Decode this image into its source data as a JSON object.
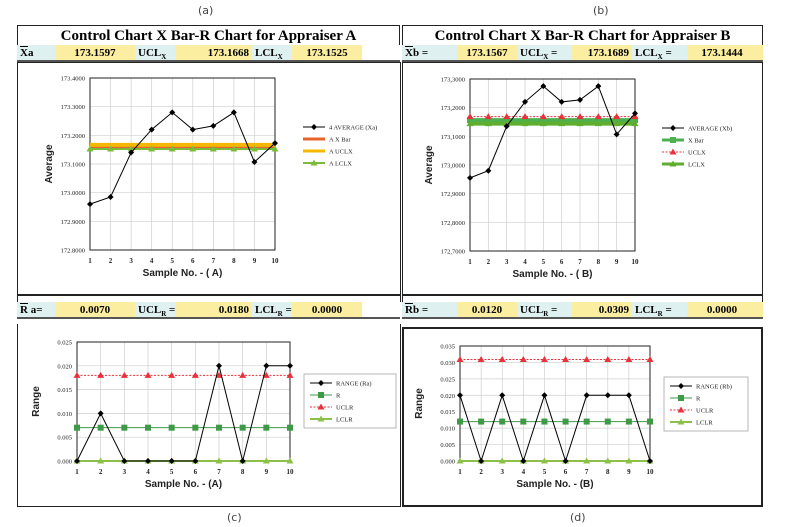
{
  "captions": {
    "a": "(a)",
    "b": "(b)",
    "c": "(c)",
    "d": "(d)"
  },
  "panels": {
    "a": {
      "title": "Control Chart X Bar-R Chart for Appraiser A",
      "stats": [
        {
          "bar": "X",
          "label": "a",
          "sub": ""
        },
        {
          "value": "173.1597"
        },
        {
          "bar": "",
          "label": "UCL",
          "sub": "X"
        },
        {
          "value": "173.1668"
        },
        {
          "bar": "",
          "label": "LCL",
          "sub": "X"
        },
        {
          "value": "173.1525"
        }
      ]
    },
    "b": {
      "title": "Control Chart X Bar-R Chart for Appraiser B",
      "stats": [
        {
          "bar": "X",
          "label": "b =",
          "sub": ""
        },
        {
          "value": "173.1567"
        },
        {
          "bar": "",
          "label": "UCL",
          "sub": "X",
          "tail": " ="
        },
        {
          "value": "173.1689"
        },
        {
          "bar": "",
          "label": "LCL",
          "sub": "X",
          "tail": " ="
        },
        {
          "value": "173.1444"
        }
      ]
    },
    "c": {
      "stats": [
        {
          "bar": "R",
          "label": " a=",
          "sub": ""
        },
        {
          "value": "0.0070"
        },
        {
          "bar": "",
          "label": "UCL",
          "sub": "R",
          "tail": " ="
        },
        {
          "value": "0.0180"
        },
        {
          "bar": "",
          "label": "LCL",
          "sub": "R",
          "tail": " ="
        },
        {
          "value": "0.0000"
        }
      ]
    },
    "d": {
      "stats": [
        {
          "bar": "R",
          "label": "b =",
          "sub": ""
        },
        {
          "value": "0.0120"
        },
        {
          "bar": "",
          "label": "UCL",
          "sub": "R",
          "tail": " ="
        },
        {
          "value": "0.0309"
        },
        {
          "bar": "",
          "label": "LCL",
          "sub": "R",
          "tail": " ="
        },
        {
          "value": "0.0000"
        }
      ]
    }
  },
  "chart_data": [
    {
      "type": "line",
      "xlabel": "Sample No. - ( A)",
      "ylabel": "Average",
      "ylim": [
        172.8,
        173.4
      ],
      "grid": true,
      "legend": "right",
      "categories": [
        "1",
        "2",
        "3",
        "4",
        "5",
        "6",
        "7",
        "8",
        "9",
        "10"
      ],
      "yticks": [
        "172.8000",
        "172.9000",
        "173.0000",
        "173.1000",
        "173.2000",
        "173.3000",
        "173.4000"
      ],
      "series": [
        {
          "name": "4  AVERAGE (Xa)",
          "values": [
            172.96,
            172.985,
            173.14,
            173.22,
            173.28,
            173.22,
            173.233,
            173.28,
            173.107,
            173.173
          ],
          "color": "#000000",
          "marker": "diamond",
          "width": 1
        },
        {
          "name": "A X Bar",
          "values": [
            173.1597,
            173.1597,
            173.1597,
            173.1597,
            173.1597,
            173.1597,
            173.1597,
            173.1597,
            173.1597,
            173.1597
          ],
          "color": "#e8642c",
          "marker": "none",
          "width": 4
        },
        {
          "name": "A UCLX",
          "values": [
            173.1668,
            173.1668,
            173.1668,
            173.1668,
            173.1668,
            173.1668,
            173.1668,
            173.1668,
            173.1668,
            173.1668
          ],
          "color": "#f5b800",
          "marker": "none",
          "width": 4
        },
        {
          "name": "A LCLX",
          "values": [
            173.1525,
            173.1525,
            173.1525,
            173.1525,
            173.1525,
            173.1525,
            173.1525,
            173.1525,
            173.1525,
            173.1525
          ],
          "color": "#7cba3c",
          "marker": "triangle",
          "width": 2
        }
      ]
    },
    {
      "type": "line",
      "xlabel": "Sample No. - ( B)",
      "ylabel": "Average",
      "ylim": [
        172.7,
        173.3
      ],
      "grid": true,
      "legend": "right",
      "categories": [
        "1",
        "2",
        "3",
        "4",
        "5",
        "6",
        "7",
        "8",
        "9",
        "10"
      ],
      "yticks": [
        "172,7000",
        "172,8000",
        "172,9000",
        "173,0000",
        "173,1000",
        "173,2000",
        "173,3000"
      ],
      "series": [
        {
          "name": "AVERAGE (Xb)",
          "values": [
            172.955,
            172.98,
            173.135,
            173.22,
            173.275,
            173.22,
            173.227,
            173.275,
            173.107,
            173.18
          ],
          "color": "#000000",
          "marker": "diamond",
          "width": 1
        },
        {
          "name": "X Bar",
          "values": [
            173.1567,
            173.1567,
            173.1567,
            173.1567,
            173.1567,
            173.1567,
            173.1567,
            173.1567,
            173.1567,
            173.1567
          ],
          "color": "#4caf50",
          "marker": "square",
          "width": 4
        },
        {
          "name": "UCLX",
          "values": [
            173.1689,
            173.1689,
            173.1689,
            173.1689,
            173.1689,
            173.1689,
            173.1689,
            173.1689,
            173.1689,
            173.1689
          ],
          "color": "#e8323c",
          "marker": "triangle",
          "width": 1,
          "dash": true
        },
        {
          "name": "LCLX",
          "values": [
            173.1444,
            173.1444,
            173.1444,
            173.1444,
            173.1444,
            173.1444,
            173.1444,
            173.1444,
            173.1444,
            173.1444
          ],
          "color": "#5fae2e",
          "marker": "triangle",
          "width": 4
        }
      ]
    },
    {
      "type": "line",
      "xlabel": "Sample No. - (A)",
      "ylabel": "Range",
      "ylim": [
        0,
        0.025
      ],
      "grid": true,
      "legend": "right",
      "categories": [
        "1",
        "2",
        "3",
        "4",
        "5",
        "6",
        "7",
        "8",
        "9",
        "10"
      ],
      "yticks": [
        "0.000",
        "0.005",
        "0.010",
        "0.015",
        "0.020",
        "0.025"
      ],
      "series": [
        {
          "name": "RANGE (Ra)",
          "values": [
            0,
            0.01,
            0,
            0,
            0,
            0,
            0.02,
            0,
            0.02,
            0.02
          ],
          "color": "#000000",
          "marker": "diamond",
          "width": 1
        },
        {
          "name": "R",
          "values": [
            0.007,
            0.007,
            0.007,
            0.007,
            0.007,
            0.007,
            0.007,
            0.007,
            0.007,
            0.007
          ],
          "color": "#3f9a48",
          "marker": "square",
          "width": 1
        },
        {
          "name": "UCLR",
          "values": [
            0.018,
            0.018,
            0.018,
            0.018,
            0.018,
            0.018,
            0.018,
            0.018,
            0.018,
            0.018
          ],
          "color": "#e8323c",
          "marker": "triangle",
          "width": 1,
          "dash": true
        },
        {
          "name": "LCLR",
          "values": [
            0,
            0,
            0,
            0,
            0,
            0,
            0,
            0,
            0,
            0
          ],
          "color": "#8cc04a",
          "marker": "triangle",
          "width": 2
        }
      ]
    },
    {
      "type": "line",
      "xlabel": "Sample No. - (B)",
      "ylabel": "Range",
      "ylim": [
        0,
        0.035
      ],
      "grid": true,
      "legend": "right",
      "categories": [
        "1",
        "2",
        "3",
        "4",
        "5",
        "6",
        "7",
        "8",
        "9",
        "10"
      ],
      "yticks": [
        "0.000",
        "0.005",
        "0.010",
        "0.015",
        "0.020",
        "0.025",
        "0.030",
        "0.035"
      ],
      "series": [
        {
          "name": "RANGE (Rb)",
          "values": [
            0.02,
            0,
            0.02,
            0,
            0.02,
            0,
            0.02,
            0.02,
            0.02,
            0
          ],
          "color": "#000000",
          "marker": "diamond",
          "width": 1
        },
        {
          "name": "R",
          "values": [
            0.012,
            0.012,
            0.012,
            0.012,
            0.012,
            0.012,
            0.012,
            0.012,
            0.012,
            0.012
          ],
          "color": "#3f9a48",
          "marker": "square",
          "width": 1
        },
        {
          "name": "UCLR",
          "values": [
            0.0309,
            0.0309,
            0.0309,
            0.0309,
            0.0309,
            0.0309,
            0.0309,
            0.0309,
            0.0309,
            0.0309
          ],
          "color": "#e8323c",
          "marker": "triangle",
          "width": 1,
          "dash": true
        },
        {
          "name": "LCLR",
          "values": [
            0,
            0,
            0,
            0,
            0,
            0,
            0,
            0,
            0,
            0
          ],
          "color": "#8cc04a",
          "marker": "triangle",
          "width": 2
        }
      ]
    }
  ]
}
